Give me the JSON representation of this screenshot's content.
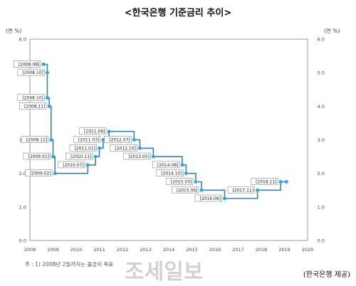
{
  "header": {
    "title": "<한국은행 기준금리 추이>"
  },
  "chart_data": {
    "type": "line",
    "title": "<한국은행 기준금리 추이>",
    "y_unit_left": "(연 %)",
    "y_unit_right": "(연 %)",
    "ylim": [
      0,
      6
    ],
    "xlim": [
      2008,
      2020
    ],
    "y_ticks": [
      "0.0",
      "1.0",
      "2.0",
      "3.0",
      "4.0",
      "5.0",
      "6.0"
    ],
    "x_ticks": [
      "2008",
      "2009",
      "2010",
      "2011",
      "2012",
      "2013",
      "2014",
      "2015",
      "2016",
      "2017",
      "2018",
      "2019",
      "2020"
    ],
    "series": [
      {
        "step": true,
        "color": "#3f7fb0",
        "point_color": "#29abe2",
        "points": [
          {
            "label": "[2008.08]",
            "x": "2008.08",
            "y": 5.25
          },
          {
            "label": "[2008.10]",
            "x": "2008.10",
            "y": 5.0
          },
          {
            "label": "[2008.10]",
            "x": "2008.10",
            "y": 4.25
          },
          {
            "label": "[2008.11]",
            "x": "2008.11",
            "y": 4.0
          },
          {
            "label": "[2008.12]",
            "x": "2008.12",
            "y": 3.0
          },
          {
            "label": "[2009.01]",
            "x": "2009.01",
            "y": 2.5
          },
          {
            "label": "[2009.02]",
            "x": "2009.02",
            "y": 2.0
          },
          {
            "label": "[2010.07]",
            "x": "2010.07",
            "y": 2.25
          },
          {
            "label": "[2010.11]",
            "x": "2010.11",
            "y": 2.5
          },
          {
            "label": "[2011.01]",
            "x": "2011.01",
            "y": 2.75
          },
          {
            "label": "[2011.03]",
            "x": "2011.03",
            "y": 3.0
          },
          {
            "label": "[2011.06]",
            "x": "2011.06",
            "y": 3.25
          },
          {
            "label": "[2012.07]",
            "x": "2012.07",
            "y": 3.0
          },
          {
            "label": "[2012.10]",
            "x": "2012.10",
            "y": 2.75
          },
          {
            "label": "[2013.05]",
            "x": "2013.05",
            "y": 2.5
          },
          {
            "label": "[2014.08]",
            "x": "2014.08",
            "y": 2.25
          },
          {
            "label": "[2014.10]",
            "x": "2014.10",
            "y": 2.0
          },
          {
            "label": "[2015.03]",
            "x": "2015.03",
            "y": 1.75
          },
          {
            "label": "[2015.06]",
            "x": "2015.06",
            "y": 1.5
          },
          {
            "label": "[2016.06]",
            "x": "2016.06",
            "y": 1.25
          },
          {
            "label": "[2017.11]",
            "x": "2017.11",
            "y": 1.5
          },
          {
            "label": "[2018.11]",
            "x": "2018.11",
            "y": 1.75
          },
          {
            "label": "",
            "x": "2019.02",
            "y": 1.75
          }
        ]
      }
    ],
    "note": "주 : 1) 2008년 2월까지는 콜금리 목표",
    "source": "(한국은행 제공)",
    "watermark": "조세일보",
    "grid": false
  }
}
